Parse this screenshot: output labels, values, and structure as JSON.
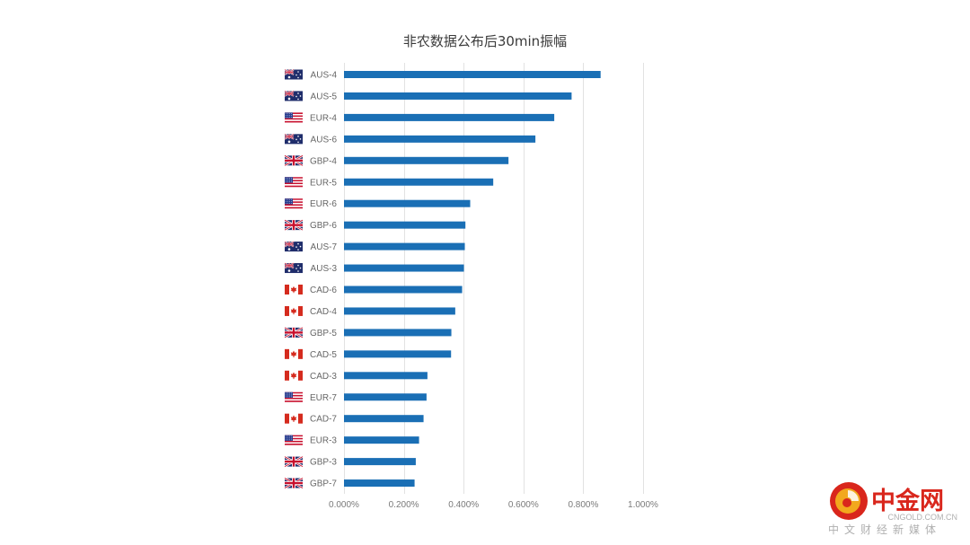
{
  "chart_data": {
    "type": "bar",
    "orientation": "horizontal",
    "title": "非农数据公布后30min振幅",
    "xlabel": "",
    "ylabel": "",
    "xlim": [
      0,
      0.01
    ],
    "x_ticks": [
      "0.000%",
      "0.200%",
      "0.400%",
      "0.600%",
      "0.800%",
      "1.000%"
    ],
    "grid": true,
    "categories": [
      "AUS-4",
      "AUS-5",
      "EUR-4",
      "AUS-6",
      "GBP-4",
      "EUR-5",
      "EUR-6",
      "GBP-6",
      "AUS-7",
      "AUS-3",
      "CAD-6",
      "CAD-4",
      "GBP-5",
      "CAD-5",
      "CAD-3",
      "EUR-7",
      "CAD-7",
      "EUR-3",
      "GBP-3",
      "GBP-7"
    ],
    "flags": [
      "AU",
      "AU",
      "US",
      "AU",
      "GB",
      "US",
      "US",
      "GB",
      "AU",
      "AU",
      "CA",
      "CA",
      "GB",
      "CA",
      "CA",
      "US",
      "CA",
      "US",
      "GB",
      "GB"
    ],
    "values": [
      0.00858,
      0.00761,
      0.00703,
      0.0064,
      0.0055,
      0.00499,
      0.00422,
      0.00406,
      0.00404,
      0.00401,
      0.00395,
      0.00372,
      0.00359,
      0.00358,
      0.00279,
      0.00276,
      0.00266,
      0.00251,
      0.0024,
      0.00236
    ],
    "bar_color": "#1a6fb5"
  },
  "watermark": {
    "brand": "中金网",
    "domain": "CNGOLD.COM.CN",
    "slogan": "中文财经新媒体",
    "colors": {
      "red": "#d9261c",
      "gold": "#f2a81d"
    }
  }
}
